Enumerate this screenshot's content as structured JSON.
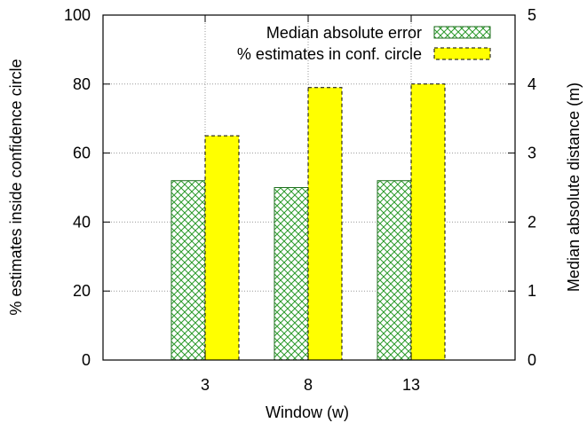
{
  "chart_data": {
    "type": "bar",
    "xlabel": "Window (w)",
    "ylabel_left": "% estimates inside confidence circle",
    "ylabel_right": "Median absolute distance (m)",
    "categories": [
      "3",
      "8",
      "13"
    ],
    "ylim_left": [
      0,
      100
    ],
    "ylim_right": [
      0,
      5
    ],
    "yticks_left": [
      "0",
      "20",
      "40",
      "60",
      "80",
      "100"
    ],
    "yticks_right": [
      "0",
      "1",
      "2",
      "3",
      "4",
      "5"
    ],
    "grid": true,
    "legend_position": "top-right",
    "series": [
      {
        "name": "Median absolute error",
        "axis": "right",
        "values": [
          2.6,
          2.5,
          2.6
        ],
        "color": "#2a9a2a",
        "fill": "crosshatch"
      },
      {
        "name": "% estimates in conf. circle",
        "axis": "left",
        "values": [
          65,
          79,
          80
        ],
        "color": "#ffff00",
        "fill": "solid"
      }
    ]
  }
}
